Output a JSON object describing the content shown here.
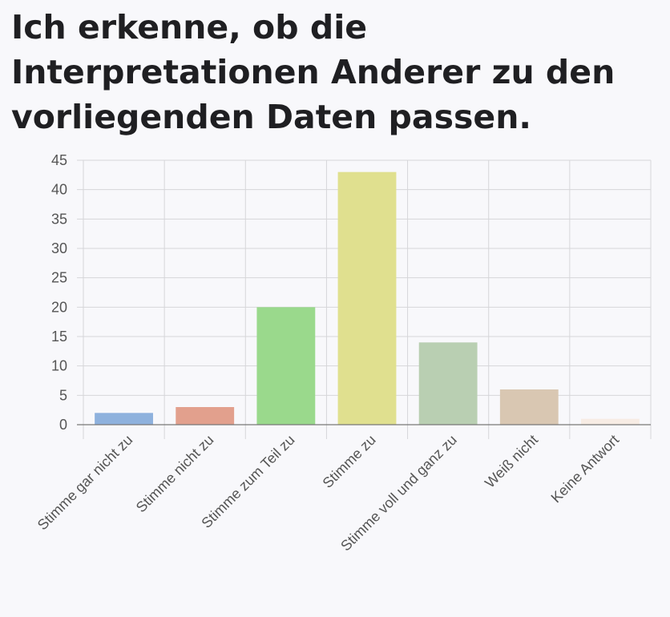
{
  "chart_data": {
    "type": "bar",
    "title": "Ich erkenne, ob die Interpretationen Anderer zu den vorliegenden Daten passen.",
    "categories": [
      "Stimme gar nicht zu",
      "Stimme nicht zu",
      "Stimme zum Teil zu",
      "Stimme zu",
      "Stimme voll und ganz zu",
      "Weiß nicht",
      "Keine Antwort"
    ],
    "values": [
      2,
      3,
      20,
      43,
      14,
      6,
      1
    ],
    "colors": [
      "#8eb1dd",
      "#e2a08d",
      "#9ad98c",
      "#e0e08f",
      "#b9cfb2",
      "#d9c7b2",
      "#f7ece4"
    ],
    "ylim": [
      0,
      45
    ],
    "yticks": [
      0,
      5,
      10,
      15,
      20,
      25,
      30,
      35,
      40,
      45
    ],
    "xlabel": "",
    "ylabel": "",
    "grid": true
  }
}
